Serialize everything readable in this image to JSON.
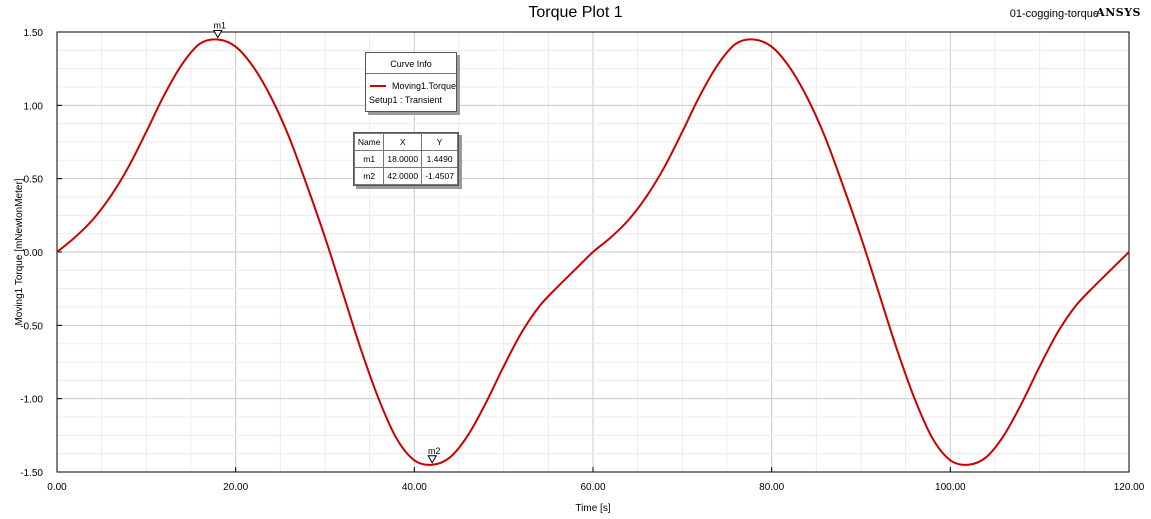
{
  "header": {
    "title": "Torque Plot 1",
    "design_name": "01-cogging-torque",
    "brand": "ANSYS"
  },
  "curve_info": {
    "header": "Curve Info",
    "trace_name": "Moving1.Torque",
    "setup": "Setup1 : Transient",
    "trace_color": "#cc0000"
  },
  "marker_table": {
    "columns": [
      "Name",
      "X",
      "Y"
    ],
    "rows": [
      {
        "name": "m1",
        "x": "18.0000",
        "y": "1.4490"
      },
      {
        "name": "m2",
        "x": "42.0000",
        "y": "-1.4507"
      }
    ]
  },
  "chart_data": {
    "type": "line",
    "title": "Torque Plot 1",
    "xlabel": "Time [s]",
    "ylabel": "Moving1 Torque [mNewtonMeter]",
    "xlim": [
      0,
      120
    ],
    "ylim": [
      -1.5,
      1.5
    ],
    "x_ticks": [
      "0.00",
      "20.00",
      "40.00",
      "60.00",
      "80.00",
      "100.00",
      "120.00"
    ],
    "y_ticks": [
      "1.50",
      "1.00",
      "0.50",
      "0.00",
      "-0.50",
      "-1.00",
      "-1.50"
    ],
    "grid": true,
    "legend": "top-center",
    "series": [
      {
        "name": "Moving1.Torque",
        "color": "#cc0000",
        "x": [
          0,
          2,
          4,
          6,
          8,
          10,
          12,
          14,
          16,
          18,
          20,
          22,
          24,
          26,
          28,
          30,
          32,
          34,
          36,
          38,
          40,
          42,
          44,
          46,
          48,
          50,
          52,
          54,
          56,
          58,
          60,
          62,
          64,
          66,
          68,
          70,
          72,
          74,
          76,
          78,
          80,
          82,
          84,
          86,
          88,
          90,
          92,
          94,
          96,
          98,
          100,
          102,
          104,
          106,
          108,
          110,
          112,
          114,
          116,
          118,
          120
        ],
        "y": [
          0.0,
          0.1,
          0.22,
          0.38,
          0.58,
          0.82,
          1.07,
          1.28,
          1.42,
          1.449,
          1.4,
          1.26,
          1.05,
          0.78,
          0.45,
          0.1,
          -0.28,
          -0.66,
          -1.0,
          -1.27,
          -1.42,
          -1.4507,
          -1.4,
          -1.25,
          -1.03,
          -0.78,
          -0.55,
          -0.37,
          -0.24,
          -0.12,
          0.0,
          0.1,
          0.22,
          0.38,
          0.58,
          0.82,
          1.07,
          1.28,
          1.42,
          1.449,
          1.4,
          1.26,
          1.05,
          0.78,
          0.45,
          0.1,
          -0.28,
          -0.66,
          -1.0,
          -1.27,
          -1.42,
          -1.4507,
          -1.4,
          -1.25,
          -1.03,
          -0.78,
          -0.55,
          -0.37,
          -0.24,
          -0.12,
          0.0
        ]
      }
    ],
    "markers": [
      {
        "name": "m1",
        "x": 18.0,
        "y": 1.449
      },
      {
        "name": "m2",
        "x": 42.0,
        "y": -1.4507
      }
    ]
  }
}
